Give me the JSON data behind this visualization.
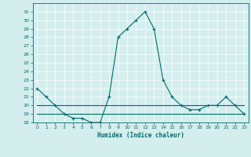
{
  "x": [
    0,
    1,
    2,
    3,
    4,
    5,
    6,
    7,
    8,
    9,
    10,
    11,
    12,
    13,
    14,
    15,
    16,
    17,
    18,
    19,
    20,
    21,
    22,
    23
  ],
  "y_main": [
    22,
    21,
    20,
    19,
    18.5,
    18.5,
    18,
    18,
    21,
    28,
    29,
    30,
    31,
    29,
    23,
    21,
    20,
    19.5,
    19.5,
    20,
    20,
    21,
    20,
    19
  ],
  "y_flat1": [
    20,
    20,
    20,
    20,
    20,
    20,
    20,
    20,
    20,
    20,
    20,
    20,
    20,
    20,
    20,
    20,
    20,
    20,
    20,
    20,
    20,
    20,
    20,
    20
  ],
  "y_flat2": [
    19,
    19,
    19,
    19,
    19,
    19,
    19,
    19,
    19,
    19,
    19,
    19,
    19,
    19,
    19,
    19,
    19,
    19,
    19,
    19,
    19,
    19,
    19,
    19
  ],
  "ylim": [
    18,
    32
  ],
  "xlim": [
    -0.5,
    23.5
  ],
  "xlabel": "Humidex (Indice chaleur)",
  "line_color": "#006b6b",
  "bg_color": "#d4eeee",
  "grid_color": "#ffffff",
  "yticks": [
    18,
    19,
    20,
    21,
    22,
    23,
    24,
    25,
    26,
    27,
    28,
    29,
    30,
    31
  ],
  "xticks": [
    0,
    1,
    2,
    3,
    4,
    5,
    6,
    7,
    8,
    9,
    10,
    11,
    12,
    13,
    14,
    15,
    16,
    17,
    18,
    19,
    20,
    21,
    22,
    23
  ]
}
